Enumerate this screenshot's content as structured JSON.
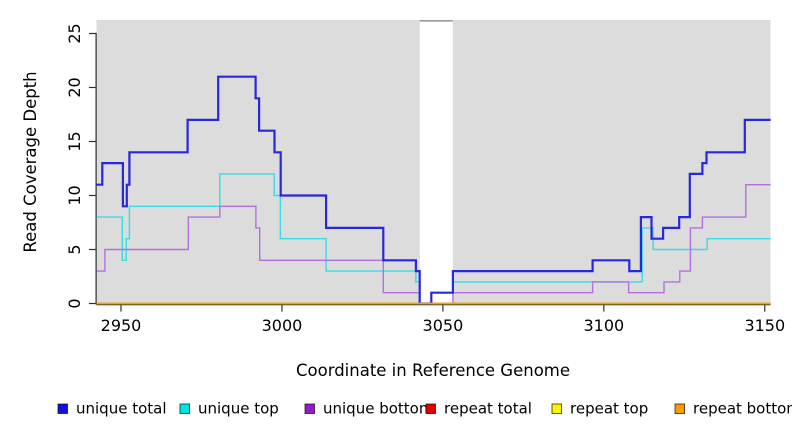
{
  "chart_data": {
    "type": "line",
    "subtype": "step-coverage-plot",
    "title": "",
    "xlabel": "Coordinate in Reference Genome",
    "ylabel": "Read Coverage Depth",
    "xlim": [
      2942.4,
      3151.8
    ],
    "ylim": [
      0,
      26.2
    ],
    "x_ticks": [
      2950,
      3000,
      3050,
      3100,
      3150
    ],
    "y_ticks": [
      0,
      5,
      10,
      15,
      20,
      25
    ],
    "grid": false,
    "plot_bg_color": "#dcdcdc",
    "axis_color": "#2f2f2f",
    "missing_region": {
      "x_start": 3042.8,
      "x_end": 3053.1,
      "fill": "#ffffff",
      "cap_color": "#9a9a9a"
    },
    "series": [
      {
        "name": "unique total",
        "color": "#2727dd",
        "line_width": 2.2,
        "z": 3,
        "steps": [
          [
            2942.4,
            11
          ],
          [
            2944.2,
            13
          ],
          [
            2950.6,
            9
          ],
          [
            2951.8,
            11
          ],
          [
            2952.6,
            14
          ],
          [
            2970.7,
            17
          ],
          [
            2980.2,
            21
          ],
          [
            2991.8,
            19
          ],
          [
            2992.9,
            16
          ],
          [
            2997.7,
            14
          ],
          [
            2999.6,
            10
          ],
          [
            3013.7,
            7
          ],
          [
            3031.5,
            4
          ],
          [
            3041.6,
            3
          ],
          [
            3042.8,
            0
          ],
          [
            3046.4,
            1
          ],
          [
            3053.1,
            3
          ],
          [
            3096.5,
            4
          ],
          [
            3107.9,
            3
          ],
          [
            3111.5,
            8
          ],
          [
            3114.8,
            6
          ],
          [
            3118.4,
            7
          ],
          [
            3123.4,
            8
          ],
          [
            3126.7,
            12
          ],
          [
            3130.6,
            13
          ],
          [
            3131.9,
            14
          ],
          [
            3143.8,
            17
          ]
        ]
      },
      {
        "name": "unique top",
        "color": "#35dde4",
        "line_width": 1.4,
        "z": 1,
        "steps": [
          [
            2942.4,
            8
          ],
          [
            2950.4,
            4
          ],
          [
            2951.6,
            6
          ],
          [
            2952.6,
            9
          ],
          [
            2980.7,
            12
          ],
          [
            2997.6,
            10
          ],
          [
            2999.5,
            6
          ],
          [
            3013.7,
            3
          ],
          [
            3041.6,
            2
          ],
          [
            3042.8,
            0
          ],
          [
            3046.4,
            1
          ],
          [
            3053.1,
            2
          ],
          [
            3111.9,
            7
          ],
          [
            3115.3,
            5
          ],
          [
            3132.1,
            6
          ]
        ]
      },
      {
        "name": "unique bottom",
        "color": "#b36fe0",
        "line_width": 1.4,
        "z": 2,
        "steps": [
          [
            2942.4,
            3
          ],
          [
            2945.0,
            5
          ],
          [
            2970.9,
            8
          ],
          [
            2980.7,
            9
          ],
          [
            2991.9,
            7
          ],
          [
            2993.1,
            4
          ],
          [
            3031.5,
            1
          ],
          [
            3042.8,
            0
          ],
          [
            3053.1,
            1
          ],
          [
            3096.5,
            2
          ],
          [
            3107.7,
            1
          ],
          [
            3118.7,
            2
          ],
          [
            3123.6,
            3
          ],
          [
            3126.9,
            7
          ],
          [
            3130.6,
            8
          ],
          [
            3144.1,
            11
          ]
        ]
      },
      {
        "name": "repeat total",
        "color": "#e60000",
        "line_width": 1.3,
        "z": 4,
        "steps": [
          [
            2942.4,
            0
          ]
        ]
      },
      {
        "name": "repeat top",
        "color": "#fff200",
        "line_width": 1.3,
        "z": 5,
        "steps": [
          [
            2942.4,
            0
          ]
        ]
      },
      {
        "name": "repeat bottom",
        "color": "#ff9e00",
        "line_width": 1.7,
        "z": 6,
        "steps": [
          [
            2942.4,
            0
          ]
        ]
      }
    ],
    "legend": {
      "position": "bottom",
      "items": [
        {
          "label": "unique total",
          "swatch_color": "#1111dd"
        },
        {
          "label": "unique top",
          "swatch_color": "#00e5e5"
        },
        {
          "label": "unique bottom",
          "swatch_color": "#9a19cc"
        },
        {
          "label": "repeat total",
          "swatch_color": "#e60000"
        },
        {
          "label": "repeat top",
          "swatch_color": "#fff200"
        },
        {
          "label": "repeat bottom",
          "swatch_color": "#ff9900"
        }
      ]
    }
  }
}
